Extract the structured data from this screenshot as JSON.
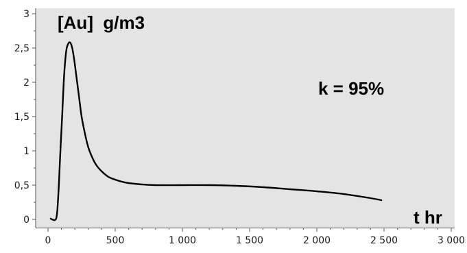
{
  "chart_data": {
    "type": "line",
    "title": "",
    "ylabel": "[Au]  g/m3",
    "xlabel": "t hr",
    "annotation": "k = 95%",
    "xlim": [
      0,
      3000
    ],
    "ylim": [
      0,
      3
    ],
    "x_ticks": [
      0,
      500,
      1000,
      1500,
      2000,
      2500,
      3000
    ],
    "x_tick_labels": [
      "0",
      "500",
      "1 000",
      "1 500",
      "2 000",
      "2 500",
      "3 000"
    ],
    "y_ticks": [
      0,
      0.5,
      1,
      1.5,
      2,
      2.5,
      3
    ],
    "y_tick_labels": [
      "0",
      "0,5",
      "1",
      "1,5",
      "2",
      "2,5",
      "3"
    ],
    "grid": false,
    "colors": {
      "plot_background": "#e4e4e4",
      "line": "#000000",
      "axis": "#555555"
    },
    "series": [
      {
        "x": [
          20,
          60,
          75,
          90,
          105,
          120,
          135,
          150,
          165,
          180,
          195,
          210,
          230,
          250,
          275,
          300,
          330,
          360,
          400,
          450,
          500,
          550,
          600,
          700,
          800,
          1000,
          1200,
          1400,
          1600,
          1800,
          2000,
          2200,
          2400,
          2480
        ],
        "y": [
          0.01,
          0.01,
          0.3,
          0.9,
          1.5,
          2.1,
          2.45,
          2.56,
          2.58,
          2.5,
          2.33,
          2.1,
          1.8,
          1.5,
          1.25,
          1.05,
          0.9,
          0.79,
          0.7,
          0.62,
          0.58,
          0.55,
          0.53,
          0.51,
          0.5,
          0.5,
          0.5,
          0.49,
          0.47,
          0.44,
          0.41,
          0.37,
          0.31,
          0.28
        ]
      }
    ]
  }
}
